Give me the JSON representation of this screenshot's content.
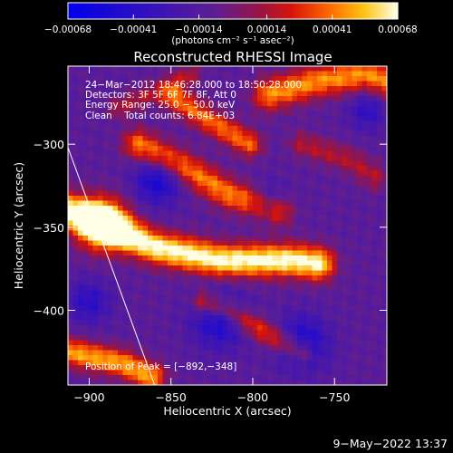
{
  "chart_data": {
    "type": "heatmap",
    "title": "Reconstructed RHESSI Image",
    "xlabel": "Heliocentric X (arcsec)",
    "ylabel": "Heliocentric Y (arcsec)",
    "xlim": [
      -913,
      -718
    ],
    "ylim": [
      -445,
      -253
    ],
    "x_ticks": [
      -900,
      -850,
      -800,
      -750
    ],
    "y_ticks": [
      -300,
      -350,
      -400
    ],
    "x_tick_labels": [
      "−900",
      "−850",
      "−800",
      "−750"
    ],
    "y_tick_labels": [
      "−300",
      "−350",
      "−400"
    ],
    "colorbar": {
      "range": [
        -0.00068,
        0.00068
      ],
      "tick_values": [
        -0.00068,
        -0.00041,
        -0.00014,
        0.00014,
        0.00041,
        0.00068
      ],
      "tick_labels": [
        "−0.00068",
        "−0.00041",
        "−0.00014",
        "0.00014",
        "0.00041",
        "0.00068"
      ],
      "unit_label": "(photons cm⁻² s⁻¹ asec⁻²)"
    },
    "annotations": [
      "24−Mar−2012 18:46:28.000 to 18:50:28.000",
      "Detectors: 3F 5F 6F 7F 8F, Att 0",
      "Energy Range: 25.0 − 50.0 keV",
      "Clean    Total counts: 6.84E+03"
    ],
    "peak_label": "Position of Peak = [−892,−348]",
    "peak": [
      -892,
      -348
    ],
    "limb_line": [
      [
        -913,
        -302
      ],
      [
        -860,
        -445
      ]
    ],
    "ridges": [
      {
        "x": [
          -913,
          -892,
          -860,
          -820,
          -775,
          -760
        ],
        "y": [
          -340,
          -348,
          -362,
          -370,
          -370,
          -372
        ],
        "w": 14,
        "amp": 0.6
      },
      {
        "x": [
          -870,
          -845,
          -815,
          -785
        ],
        "y": [
          -300,
          -312,
          -330,
          -340
        ],
        "w": 13,
        "amp": 0.4
      },
      {
        "x": [
          -848,
          -828,
          -802
        ],
        "y": [
          -272,
          -285,
          -300
        ],
        "w": 11,
        "amp": 0.37
      },
      {
        "x": [
          -790,
          -760,
          -730,
          -718
        ],
        "y": [
          -270,
          -262,
          -258,
          -262
        ],
        "w": 14,
        "amp": 0.42
      },
      {
        "x": [
          -830,
          -815,
          -790,
          -770
        ],
        "y": [
          -395,
          -400,
          -415,
          -425
        ],
        "w": 10,
        "amp": 0.33
      },
      {
        "x": [
          -913,
          -880,
          -862
        ],
        "y": [
          -425,
          -432,
          -440
        ],
        "w": 12,
        "amp": 0.45
      },
      {
        "x": [
          -882,
          -858,
          -838
        ],
        "y": [
          -278,
          -268,
          -258
        ],
        "w": 9,
        "amp": 0.2
      },
      {
        "x": [
          -770,
          -740,
          -725
        ],
        "y": [
          -300,
          -310,
          -320
        ],
        "w": 11,
        "amp": 0.2
      }
    ],
    "blobs": [
      {
        "x": -892,
        "y": -348,
        "s": 11,
        "amp": 0.6
      }
    ],
    "dips": [
      {
        "x": -858,
        "y": -322,
        "s": 10,
        "amp": 0.3
      },
      {
        "x": -820,
        "y": -405,
        "s": 12,
        "amp": 0.3
      },
      {
        "x": -770,
        "y": -420,
        "s": 11,
        "amp": 0.32
      },
      {
        "x": -790,
        "y": -335,
        "s": 8,
        "amp": 0.22
      },
      {
        "x": -900,
        "y": -395,
        "s": 9,
        "amp": 0.22
      },
      {
        "x": -730,
        "y": -280,
        "s": 8,
        "amp": 0.2
      }
    ],
    "grid": false
  },
  "footer": {
    "timestamp": "9−May−2022 13:37"
  }
}
